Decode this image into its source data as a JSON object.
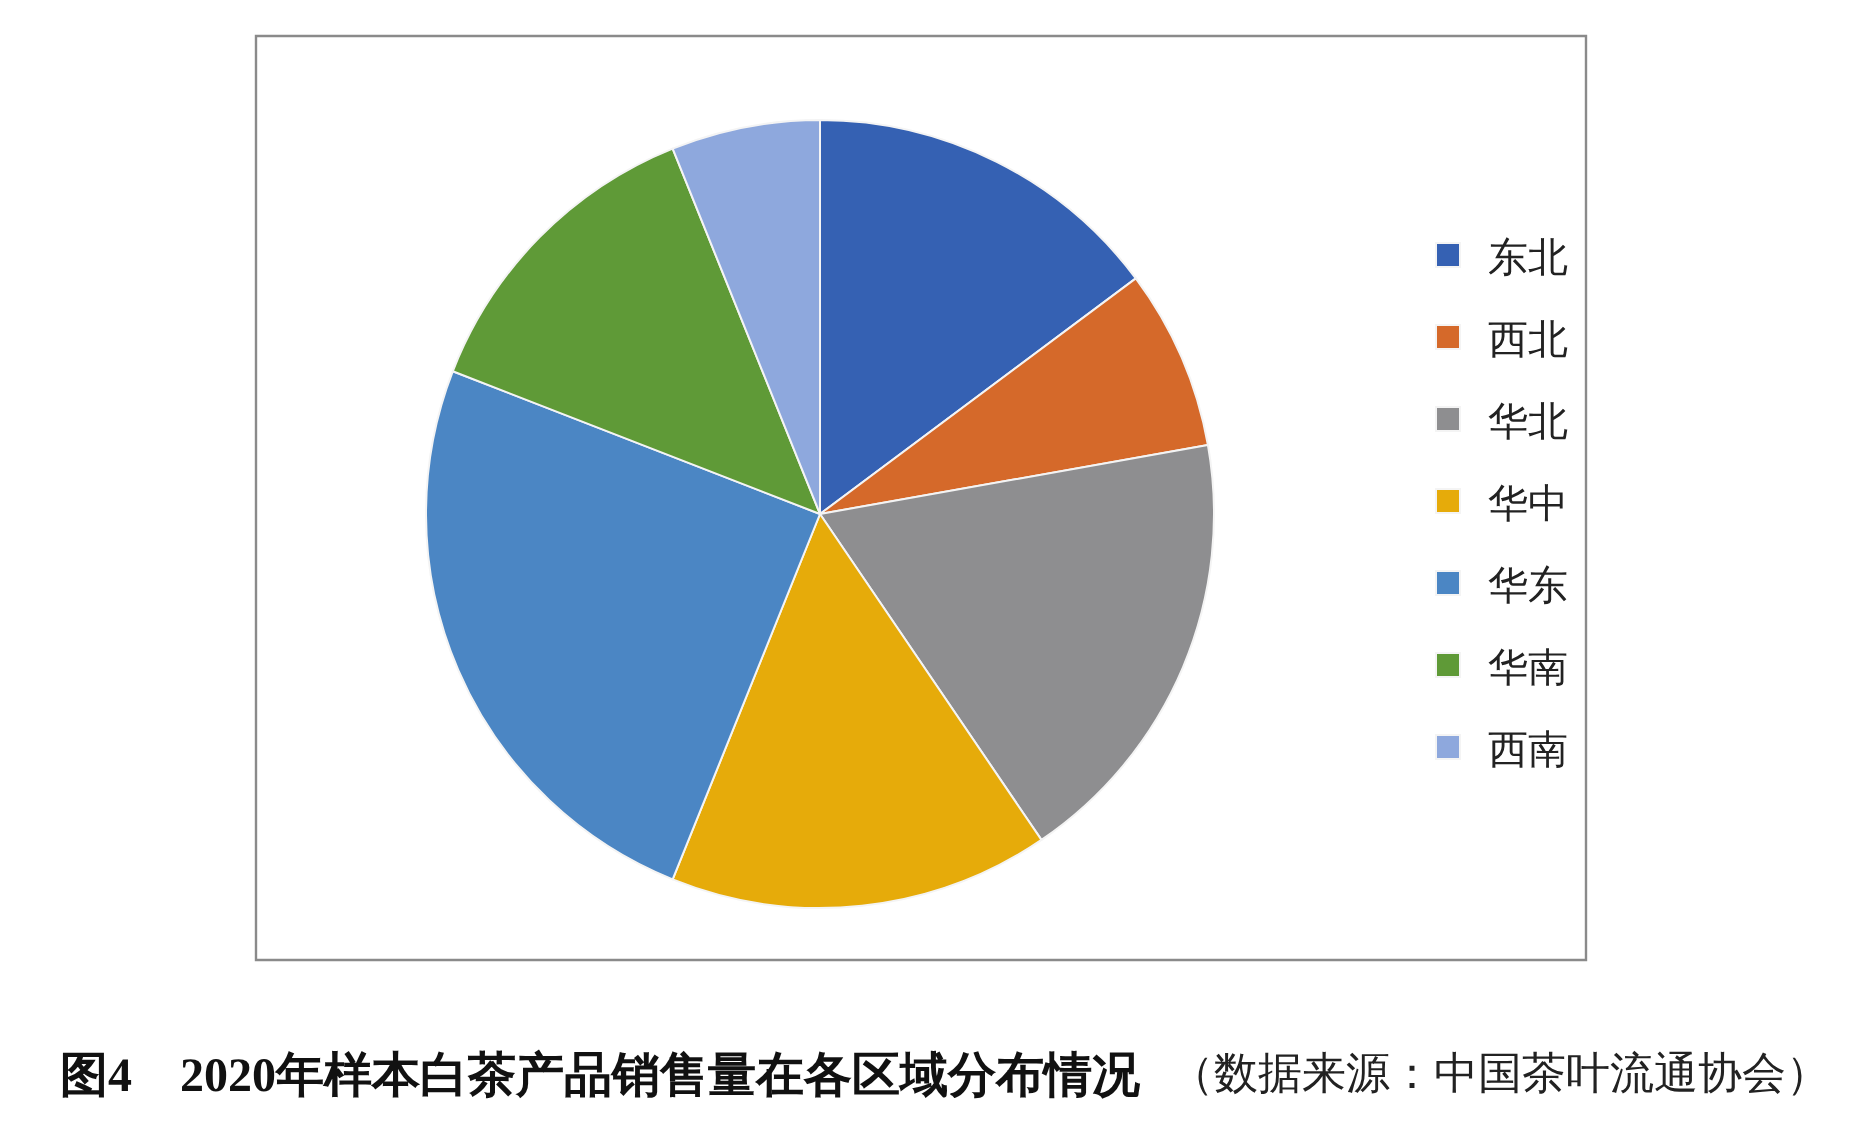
{
  "chart_data": {
    "type": "pie",
    "title": "图4　2020年样本白茶产品销售量在各区域分布情况",
    "annotations": [
      "（数据来源：中国茶叶流通协会）"
    ],
    "categories": [
      "东北",
      "西北",
      "华北",
      "华中",
      "华东",
      "华南",
      "西南"
    ],
    "values": [
      14.8,
      7.4,
      18.3,
      15.6,
      24.8,
      13.0,
      6.1
    ],
    "colors": [
      "#3561b3",
      "#d5692a",
      "#8e8e90",
      "#e6ab0a",
      "#4b86c4",
      "#5f9a37",
      "#8ea8dd"
    ],
    "legend": "right"
  }
}
